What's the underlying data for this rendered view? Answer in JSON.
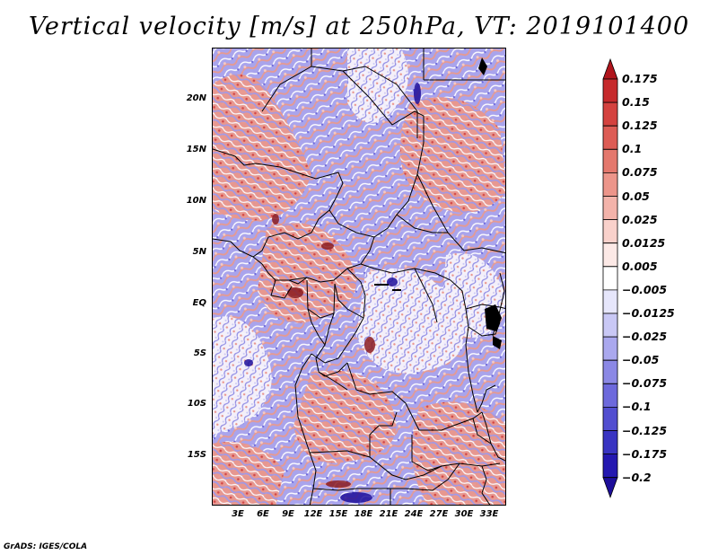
{
  "title": "Vertical velocity [m/s] at 250hPa, VT: 2019101400",
  "credit": "GrADS: IGES/COLA",
  "map": {
    "variable": "Vertical velocity",
    "units": "m/s",
    "level": "250hPa",
    "valid_time": "2019101400",
    "lat_labels": [
      "20N",
      "15N",
      "10N",
      "5N",
      "EQ",
      "5S",
      "10S",
      "15S"
    ],
    "lon_labels": [
      "3E",
      "6E",
      "9E",
      "12E",
      "15E",
      "18E",
      "21E",
      "24E",
      "27E",
      "30E",
      "33E"
    ]
  },
  "colorbar": {
    "labels": [
      "0.175",
      "0.15",
      "0.125",
      "0.1",
      "0.075",
      "0.05",
      "0.025",
      "0.0125",
      "0.005",
      "−0.005",
      "−0.0125",
      "−0.025",
      "−0.05",
      "−0.075",
      "−0.1",
      "−0.125",
      "−0.175",
      "−0.2"
    ],
    "colors": [
      "#b0151c",
      "#c62a2c",
      "#d4423f",
      "#dd5c55",
      "#e4786d",
      "#ec958a",
      "#f3b3aa",
      "#f9d1cb",
      "#fce9e6",
      "#ffffff",
      "#e6e6fb",
      "#c9c8f5",
      "#aaa8ee",
      "#8b88e5",
      "#6d69dc",
      "#524ed0",
      "#3934c2",
      "#2418b0",
      "#1d0e9a"
    ]
  }
}
